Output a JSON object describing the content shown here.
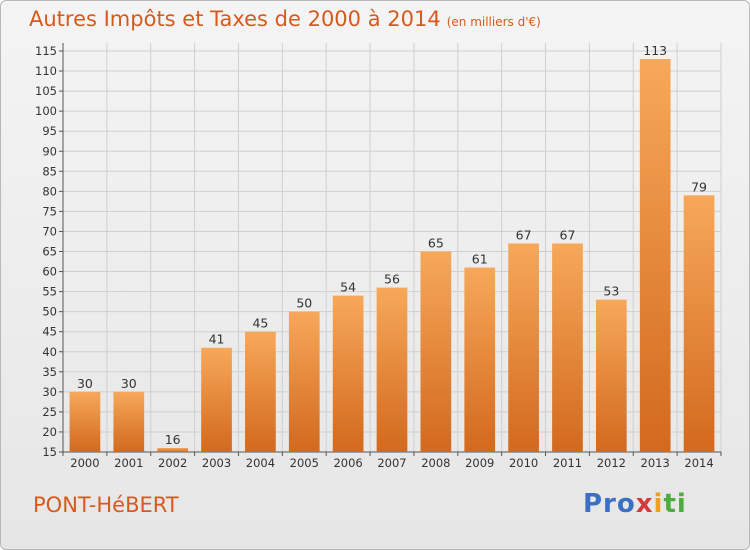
{
  "title": "Autres Impôts et Taxes de 2000 à 2014",
  "subtitle": "(en milliers d'€)",
  "place": "PONT-HéBERT",
  "logo": {
    "text": "Proxiti",
    "colors": [
      "#3a6fc4",
      "#f0a020",
      "#d23a3a",
      "#4cae3a"
    ]
  },
  "colors": {
    "bar_top": "#f7a85a",
    "bar_bottom": "#d2691e",
    "grid": "#cfcfcf",
    "title": "#d65a1e"
  },
  "chart_data": {
    "type": "bar",
    "title": "Autres Impôts et Taxes de 2000 à 2014",
    "subtitle": "(en milliers d'€)",
    "xlabel": "",
    "ylabel": "",
    "categories": [
      "2000",
      "2001",
      "2002",
      "2003",
      "2004",
      "2005",
      "2006",
      "2007",
      "2008",
      "2009",
      "2010",
      "2011",
      "2012",
      "2013",
      "2014"
    ],
    "values": [
      30,
      30,
      16,
      41,
      45,
      50,
      54,
      56,
      65,
      61,
      67,
      67,
      53,
      113,
      79
    ],
    "ylim": [
      15,
      115
    ],
    "yticks": [
      15,
      20,
      25,
      30,
      35,
      40,
      45,
      50,
      55,
      60,
      65,
      70,
      75,
      80,
      85,
      90,
      95,
      100,
      105,
      110,
      115
    ],
    "grid": true,
    "data_labels": true
  }
}
